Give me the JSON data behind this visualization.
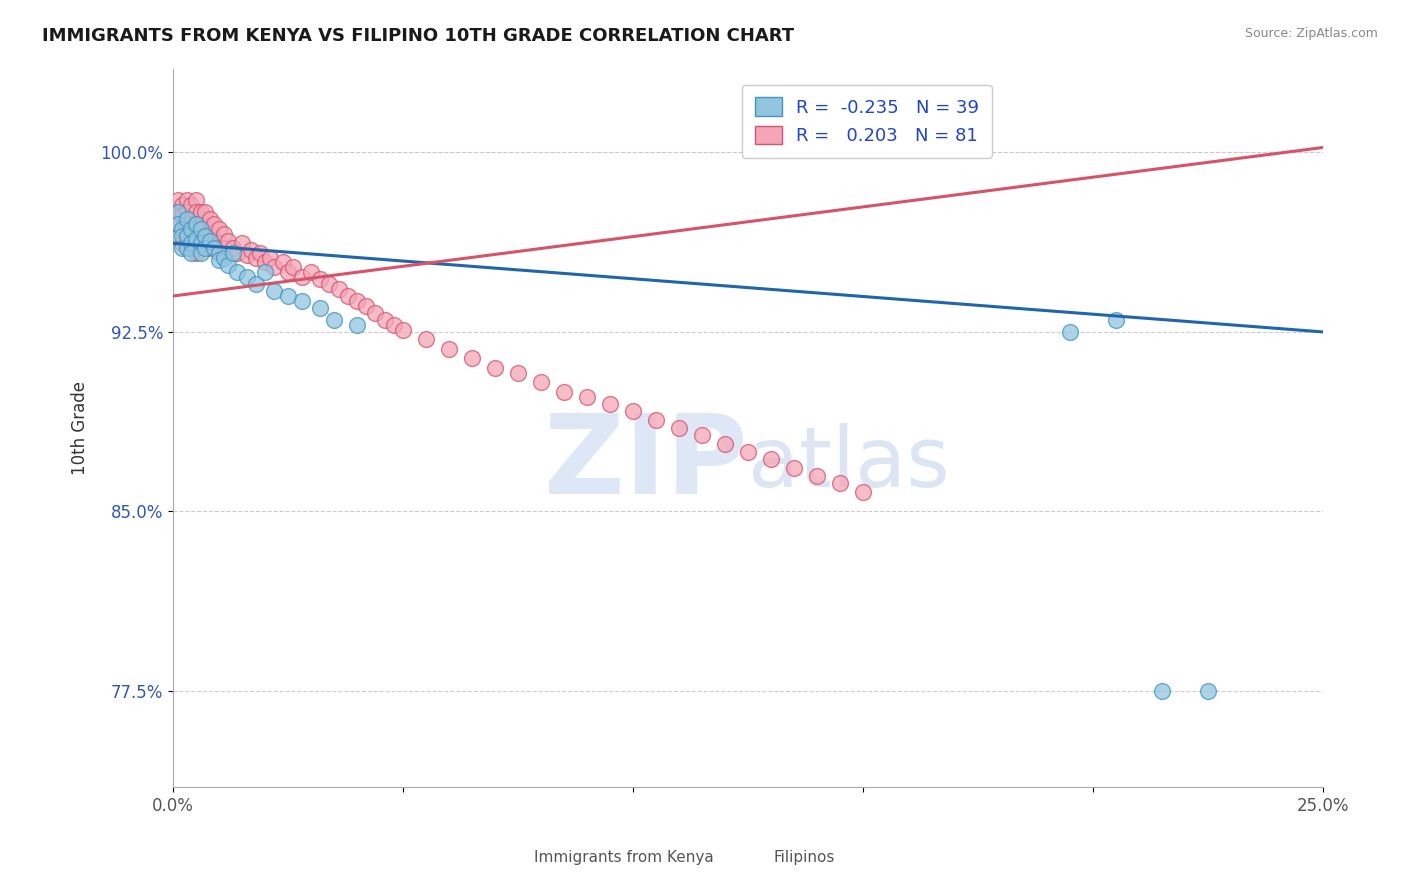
{
  "title": "IMMIGRANTS FROM KENYA VS FILIPINO 10TH GRADE CORRELATION CHART",
  "source": "Source: ZipAtlas.com",
  "xlabel_legend1": "Immigrants from Kenya",
  "xlabel_legend2": "Filipinos",
  "ylabel": "10th Grade",
  "xlim": [
    0.0,
    0.25
  ],
  "ylim": [
    0.735,
    1.035
  ],
  "yticks": [
    0.775,
    0.85,
    0.925,
    1.0
  ],
  "ytick_labels": [
    "77.5%",
    "85.0%",
    "92.5%",
    "100.0%"
  ],
  "blue_color": "#92c5de",
  "pink_color": "#f4a6b8",
  "blue_edge_color": "#4393c3",
  "pink_edge_color": "#d6546a",
  "blue_line_color": "#2166ac",
  "pink_line_color": "#d6546a",
  "legend_blue_label": "R =  -0.235   N = 39",
  "legend_pink_label": "R =   0.203   N = 81",
  "blue_line_x0": 0.0,
  "blue_line_y0": 0.962,
  "blue_line_x1": 0.25,
  "blue_line_y1": 0.925,
  "pink_line_x0": 0.0,
  "pink_line_y0": 0.94,
  "pink_line_x1": 0.25,
  "pink_line_y1": 1.002,
  "blue_x": [
    0.001,
    0.001,
    0.002,
    0.002,
    0.002,
    0.003,
    0.003,
    0.003,
    0.004,
    0.004,
    0.004,
    0.005,
    0.005,
    0.006,
    0.006,
    0.006,
    0.007,
    0.007,
    0.008,
    0.009,
    0.01,
    0.01,
    0.011,
    0.012,
    0.013,
    0.014,
    0.016,
    0.018,
    0.02,
    0.022,
    0.025,
    0.028,
    0.032,
    0.035,
    0.04,
    0.195,
    0.205,
    0.215,
    0.225
  ],
  "blue_y": [
    0.975,
    0.97,
    0.968,
    0.965,
    0.96,
    0.972,
    0.965,
    0.96,
    0.968,
    0.962,
    0.958,
    0.97,
    0.964,
    0.968,
    0.962,
    0.958,
    0.965,
    0.96,
    0.963,
    0.96,
    0.958,
    0.955,
    0.956,
    0.953,
    0.958,
    0.95,
    0.948,
    0.945,
    0.95,
    0.942,
    0.94,
    0.938,
    0.935,
    0.93,
    0.928,
    0.925,
    0.93,
    0.775,
    0.775
  ],
  "pink_x": [
    0.001,
    0.001,
    0.001,
    0.002,
    0.002,
    0.002,
    0.002,
    0.003,
    0.003,
    0.003,
    0.003,
    0.004,
    0.004,
    0.004,
    0.004,
    0.005,
    0.005,
    0.005,
    0.005,
    0.005,
    0.006,
    0.006,
    0.006,
    0.007,
    0.007,
    0.007,
    0.008,
    0.008,
    0.008,
    0.009,
    0.009,
    0.01,
    0.01,
    0.011,
    0.011,
    0.012,
    0.013,
    0.014,
    0.015,
    0.016,
    0.017,
    0.018,
    0.019,
    0.02,
    0.021,
    0.022,
    0.024,
    0.025,
    0.026,
    0.028,
    0.03,
    0.032,
    0.034,
    0.036,
    0.038,
    0.04,
    0.042,
    0.044,
    0.046,
    0.048,
    0.05,
    0.055,
    0.06,
    0.065,
    0.07,
    0.075,
    0.08,
    0.085,
    0.09,
    0.095,
    0.1,
    0.105,
    0.11,
    0.115,
    0.12,
    0.125,
    0.13,
    0.135,
    0.14,
    0.145,
    0.15
  ],
  "pink_y": [
    0.98,
    0.975,
    0.97,
    0.978,
    0.974,
    0.968,
    0.962,
    0.98,
    0.975,
    0.97,
    0.965,
    0.978,
    0.972,
    0.966,
    0.96,
    0.98,
    0.975,
    0.97,
    0.965,
    0.958,
    0.975,
    0.97,
    0.964,
    0.975,
    0.969,
    0.963,
    0.972,
    0.966,
    0.96,
    0.97,
    0.963,
    0.968,
    0.962,
    0.966,
    0.96,
    0.963,
    0.96,
    0.958,
    0.962,
    0.957,
    0.959,
    0.956,
    0.958,
    0.954,
    0.956,
    0.952,
    0.954,
    0.95,
    0.952,
    0.948,
    0.95,
    0.947,
    0.945,
    0.943,
    0.94,
    0.938,
    0.936,
    0.933,
    0.93,
    0.928,
    0.926,
    0.922,
    0.918,
    0.914,
    0.91,
    0.908,
    0.904,
    0.9,
    0.898,
    0.895,
    0.892,
    0.888,
    0.885,
    0.882,
    0.878,
    0.875,
    0.872,
    0.868,
    0.865,
    0.862,
    0.858
  ]
}
